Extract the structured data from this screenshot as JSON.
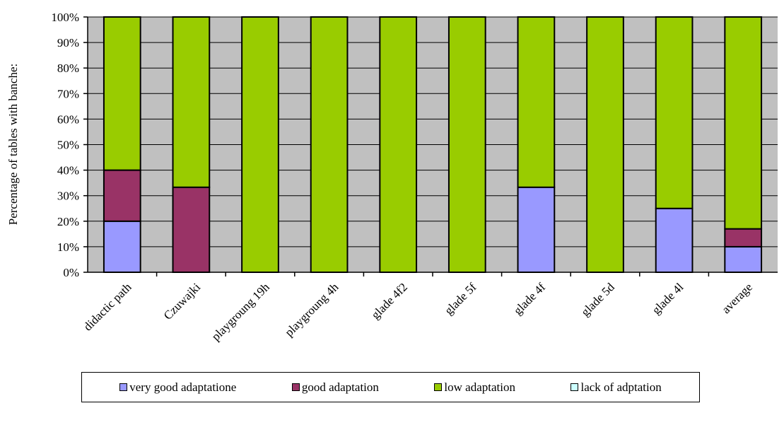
{
  "chart_data": {
    "type": "bar",
    "stacked": true,
    "ylabel": "Percentage of tables with banche:",
    "xlabel": "",
    "ylim": [
      0,
      100
    ],
    "yticks": [
      "0%",
      "10%",
      "20%",
      "30%",
      "40%",
      "50%",
      "60%",
      "70%",
      "80%",
      "90%",
      "100%"
    ],
    "grid": true,
    "legend_position": "bottom",
    "categories": [
      "didactic path",
      "Czuwajki",
      "playgroung 19h",
      "playgroung 4h",
      "glade 4f2",
      "glade 5f",
      "glade 4f",
      "glade 5d",
      "glade 4l",
      "average"
    ],
    "series": [
      {
        "name": "very good adaptatione",
        "color": "#9999ff",
        "values": [
          20,
          0,
          0,
          0,
          0,
          0,
          33.3,
          0,
          25,
          10
        ]
      },
      {
        "name": "good adaptation",
        "color": "#993366",
        "values": [
          20,
          33.3,
          0,
          0,
          0,
          0,
          0,
          0,
          0,
          7
        ]
      },
      {
        "name": "low adaptation",
        "color": "#99cc00",
        "values": [
          60,
          66.7,
          100,
          100,
          100,
          100,
          66.7,
          100,
          75,
          83
        ]
      },
      {
        "name": "lack of adptation",
        "color": "#ccffff",
        "values": [
          0,
          0,
          0,
          0,
          0,
          0,
          0,
          0,
          0,
          0
        ]
      }
    ],
    "plot_background": "#c0c0c0"
  }
}
